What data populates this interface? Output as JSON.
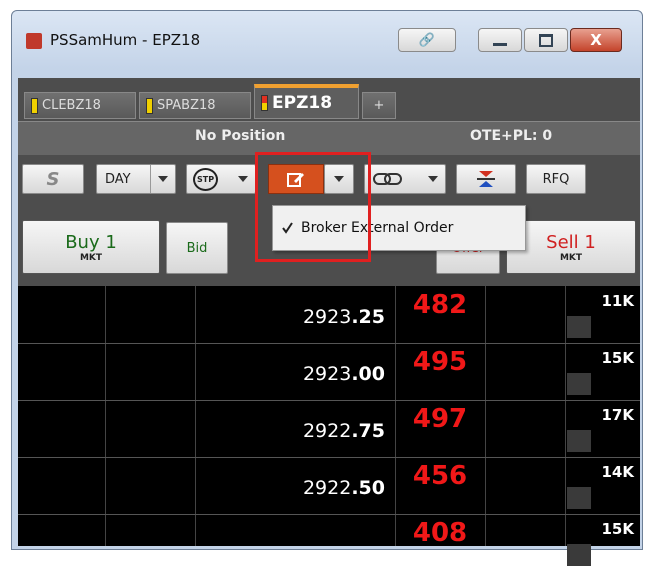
{
  "window": {
    "title": "PSSamHum - EPZ18"
  },
  "tabs": [
    "CLEBZ18",
    "SPABZ18",
    "EPZ18",
    "+"
  ],
  "status": {
    "position": "No Position",
    "ote": "OTE+PL: 0"
  },
  "toolbar": {
    "s": "S",
    "tif": "DAY",
    "stop": "STP",
    "rfq": "RFQ"
  },
  "menu": {
    "items": [
      "Broker External Order"
    ]
  },
  "order_buttons": {
    "buy": "Buy 1",
    "buy_sub": "MKT",
    "bid": "Bid",
    "offer": "Offer",
    "sell": "Sell 1",
    "sell_sub": "MKT"
  },
  "ladder": {
    "rows": [
      {
        "price_int": "2923",
        "price_dec": ".25",
        "bid_qty": "482",
        "volume": "11K"
      },
      {
        "price_int": "2923",
        "price_dec": ".00",
        "bid_qty": "495",
        "volume": "15K"
      },
      {
        "price_int": "2922",
        "price_dec": ".75",
        "bid_qty": "497",
        "volume": "17K"
      },
      {
        "price_int": "2922",
        "price_dec": ".50",
        "bid_qty": "456",
        "volume": "14K"
      },
      {
        "bid_qty": "408",
        "volume": "15K"
      }
    ]
  }
}
